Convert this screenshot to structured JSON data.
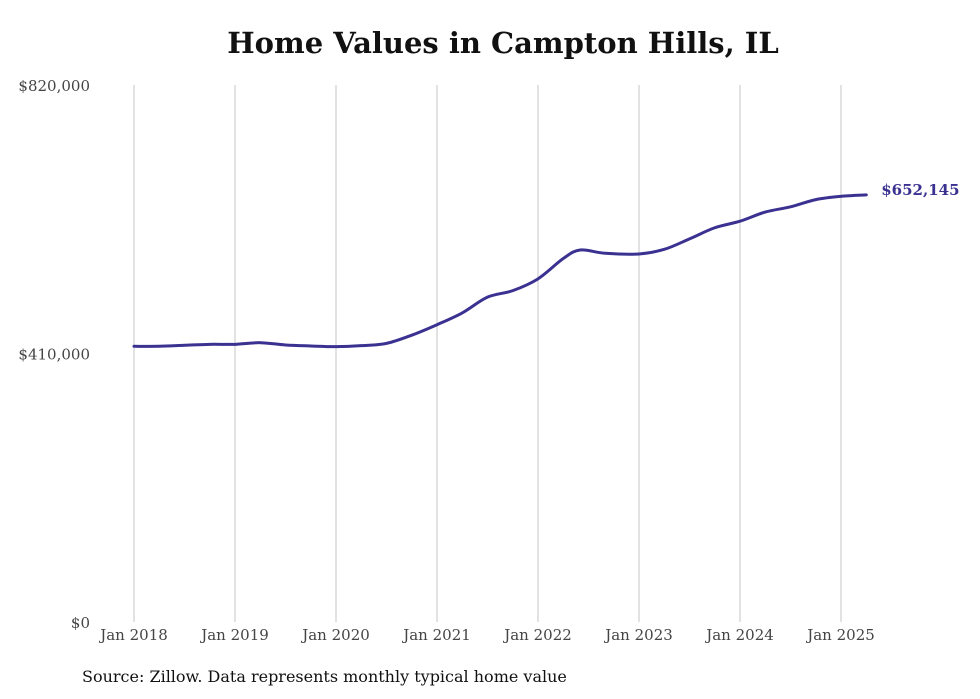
{
  "chart_data": {
    "type": "line",
    "title": "Home Values in Campton Hills, IL",
    "xlabel": "",
    "ylabel": "",
    "ylim": [
      0,
      820000
    ],
    "y_ticks": [
      {
        "value": 0,
        "label": "$0"
      },
      {
        "value": 410000,
        "label": "$410,000"
      },
      {
        "value": 820000,
        "label": "$820,000"
      }
    ],
    "x_ticks": [
      {
        "date": "2018-01",
        "label": "Jan 2018"
      },
      {
        "date": "2019-01",
        "label": "Jan 2019"
      },
      {
        "date": "2020-01",
        "label": "Jan 2020"
      },
      {
        "date": "2021-01",
        "label": "Jan 2021"
      },
      {
        "date": "2022-01",
        "label": "Jan 2022"
      },
      {
        "date": "2023-01",
        "label": "Jan 2023"
      },
      {
        "date": "2024-01",
        "label": "Jan 2024"
      },
      {
        "date": "2025-01",
        "label": "Jan 2025"
      }
    ],
    "xlim": [
      "2018-01",
      "2025-04"
    ],
    "grid": {
      "vertical": true,
      "horizontal": false
    },
    "color": "#3a3191",
    "end_label": "$652,145",
    "series": [
      {
        "points": [
          {
            "x": "2018-01",
            "y": 421000
          },
          {
            "x": "2018-04",
            "y": 421000
          },
          {
            "x": "2018-07",
            "y": 422500
          },
          {
            "x": "2018-10",
            "y": 424000
          },
          {
            "x": "2019-01",
            "y": 424000
          },
          {
            "x": "2019-04",
            "y": 426500
          },
          {
            "x": "2019-07",
            "y": 423000
          },
          {
            "x": "2019-10",
            "y": 421500
          },
          {
            "x": "2020-01",
            "y": 420500
          },
          {
            "x": "2020-04",
            "y": 422000
          },
          {
            "x": "2020-07",
            "y": 425500
          },
          {
            "x": "2020-10",
            "y": 438000
          },
          {
            "x": "2021-01",
            "y": 454000
          },
          {
            "x": "2021-04",
            "y": 472000
          },
          {
            "x": "2021-07",
            "y": 496000
          },
          {
            "x": "2021-10",
            "y": 506000
          },
          {
            "x": "2022-01",
            "y": 524000
          },
          {
            "x": "2022-04",
            "y": 555000
          },
          {
            "x": "2022-06",
            "y": 568000
          },
          {
            "x": "2022-09",
            "y": 563000
          },
          {
            "x": "2023-01",
            "y": 562000
          },
          {
            "x": "2023-04",
            "y": 569000
          },
          {
            "x": "2023-07",
            "y": 585000
          },
          {
            "x": "2023-10",
            "y": 602000
          },
          {
            "x": "2024-01",
            "y": 612000
          },
          {
            "x": "2024-04",
            "y": 626000
          },
          {
            "x": "2024-07",
            "y": 634000
          },
          {
            "x": "2024-10",
            "y": 645000
          },
          {
            "x": "2025-01",
            "y": 650000
          },
          {
            "x": "2025-04",
            "y": 652145
          }
        ]
      }
    ]
  },
  "source": "Source: Zillow. Data represents monthly typical home value"
}
